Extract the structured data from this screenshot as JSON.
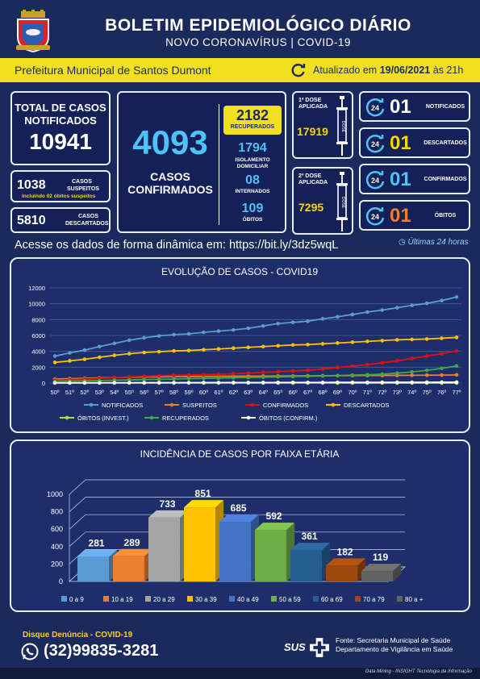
{
  "header": {
    "title": "BOLETIM EPIDEMIOLÓGICO DIÁRIO",
    "subtitle": "NOVO CORONAVÍRUS | COVID-19"
  },
  "infobar": {
    "prefeitura": "Prefeitura Municipal de Santos Dumont",
    "updated_prefix": "Atualizado em",
    "updated_date": "19/06/2021",
    "updated_suffix": "às 21h"
  },
  "totals": {
    "notificados_label_1": "TOTAL DE CASOS",
    "notificados_label_2": "NOTIFICADOS",
    "notificados_value": "10941",
    "suspeitos_value": "1038",
    "suspeitos_label_1": "CASOS",
    "suspeitos_label_2": "SUSPEITOS",
    "suspeitos_note": "Incluindo 02 óbitos suspeitos",
    "descartados_value": "5810",
    "descartados_label_1": "CASOS",
    "descartados_label_2": "DESCARTADOS"
  },
  "confirmed": {
    "value": "4093",
    "label_1": "CASOS",
    "label_2": "CONFIRMADOS",
    "recuperados_value": "2182",
    "recuperados_label": "RECUPERADOS",
    "isolamento_value": "1794",
    "isolamento_label_1": "ISOLAMENTO",
    "isolamento_label_2": "DOMICILIAR",
    "internados_value": "08",
    "internados_label": "INTERNADOS",
    "obitos_value": "109",
    "obitos_label": "ÓBITOS"
  },
  "vaccine": {
    "dose1_label_1": "1ª DOSE",
    "dose1_label_2": "APLICADA",
    "dose1_value": "17919",
    "dose2_label_1": "2ª DOSE",
    "dose2_label_2": "APLICADA",
    "dose2_value": "7295",
    "syringe_text": "DOSE",
    "icon": "syringe-icon"
  },
  "last24": {
    "badge": "24",
    "notificados_value": "01",
    "notificados_label": "NOTIFICADOS",
    "descartados_value": "01",
    "descartados_label": "DESCARTADOS",
    "confirmados_value": "01",
    "confirmados_label": "CONFIRMADOS",
    "obitos_value": "01",
    "obitos_label": "ÓBITOS",
    "footnote": "Últimas 24 horas"
  },
  "link_text": "Acesse os dados de forma dinâmica em: https://bit.ly/3dz5wqL",
  "chart_data": [
    {
      "type": "line",
      "title": "EVOLUÇÃO DE CASOS - COVID19",
      "x": [
        "50º",
        "51º",
        "52º",
        "53º",
        "54º",
        "55º",
        "56º",
        "57º",
        "58º",
        "59º",
        "60º",
        "61º",
        "62º",
        "63º",
        "64º",
        "65º",
        "66º",
        "67º",
        "68º",
        "69º",
        "70º",
        "71º",
        "72º",
        "73º",
        "74º",
        "75º",
        "76º",
        "77º"
      ],
      "ylim": [
        0,
        12000
      ],
      "yticks": [
        0,
        2000,
        4000,
        6000,
        8000,
        10000,
        12000
      ],
      "grid": true,
      "legend": "bottom",
      "series": [
        {
          "name": "NOTIFICADOS",
          "color": "#5b9bd5",
          "values": [
            3400,
            3800,
            4150,
            4600,
            5000,
            5400,
            5700,
            5950,
            6100,
            6200,
            6400,
            6550,
            6700,
            6900,
            7200,
            7500,
            7650,
            7800,
            8100,
            8350,
            8650,
            8950,
            9200,
            9500,
            9800,
            10050,
            10400,
            10850
          ]
        },
        {
          "name": "SUSPEITOS",
          "color": "#ed7d31",
          "values": [
            500,
            550,
            600,
            650,
            700,
            730,
            760,
            780,
            800,
            820,
            840,
            850,
            860,
            870,
            880,
            890,
            900,
            910,
            920,
            930,
            940,
            950,
            960,
            970,
            980,
            990,
            1000,
            1030
          ]
        },
        {
          "name": "CONFIRMADOS",
          "color": "#e01010",
          "values": [
            350,
            420,
            500,
            580,
            680,
            780,
            860,
            920,
            970,
            1010,
            1060,
            1110,
            1180,
            1250,
            1340,
            1430,
            1520,
            1620,
            1760,
            1950,
            2130,
            2330,
            2550,
            2800,
            3100,
            3400,
            3700,
            4050
          ]
        },
        {
          "name": "DESCARTADOS",
          "color": "#ffc000",
          "values": [
            2600,
            2800,
            3000,
            3250,
            3500,
            3700,
            3850,
            3950,
            4050,
            4100,
            4200,
            4300,
            4400,
            4500,
            4600,
            4700,
            4800,
            4850,
            4950,
            5050,
            5150,
            5250,
            5350,
            5450,
            5500,
            5550,
            5650,
            5750
          ]
        },
        {
          "name": "ÓBITOS (INVEST.)",
          "color": "#a9e04a",
          "values": [
            15,
            15,
            14,
            14,
            14,
            13,
            13,
            13,
            12,
            12,
            12,
            11,
            11,
            11,
            10,
            10,
            10,
            9,
            9,
            9,
            8,
            8,
            8,
            7,
            7,
            6,
            5,
            4
          ]
        },
        {
          "name": "RECUPERADOS",
          "color": "#3fa84a",
          "values": [
            200,
            240,
            280,
            310,
            350,
            390,
            430,
            470,
            510,
            550,
            590,
            620,
            660,
            700,
            740,
            780,
            820,
            860,
            900,
            950,
            1000,
            1050,
            1120,
            1250,
            1400,
            1600,
            1850,
            2150
          ]
        },
        {
          "name": "ÓBITOS (CONFIRM.)",
          "color": "#ffffff",
          "values": [
            25,
            28,
            31,
            34,
            37,
            40,
            43,
            46,
            49,
            52,
            55,
            58,
            61,
            64,
            67,
            70,
            73,
            76,
            79,
            82,
            85,
            88,
            91,
            95,
            99,
            103,
            106,
            109
          ]
        }
      ]
    },
    {
      "type": "bar",
      "title": "INCIDÊNCIA DE CASOS POR FAIXA ETÁRIA",
      "categories": [
        "0 a 9",
        "10 a 19",
        "20 a 29",
        "30 a 39",
        "40 a 49",
        "50 a 59",
        "60 a 69",
        "70 a 79",
        "80 a +"
      ],
      "values": [
        281,
        289,
        733,
        851,
        685,
        592,
        361,
        182,
        119
      ],
      "colors": [
        "#5b9bd5",
        "#ed7d31",
        "#a5a5a5",
        "#ffc000",
        "#4472c4",
        "#70ad47",
        "#255e91",
        "#9e480e",
        "#636363"
      ],
      "ylim": [
        0,
        1000
      ],
      "yticks": [
        0,
        200,
        400,
        600,
        800,
        1000
      ],
      "legend": "bottom"
    }
  ],
  "footer": {
    "disque_label": "Disque Denúncia - COVID-19",
    "phone": "(32)99835-3281",
    "sus": "SUS",
    "fonte_1": "Fonte: Secretaria Municipal de Saúde",
    "fonte_2": "Departamento de Vigilância em Saúde",
    "credit": "Data Mining  -  INSIGHT Tecnologia da Informação"
  }
}
